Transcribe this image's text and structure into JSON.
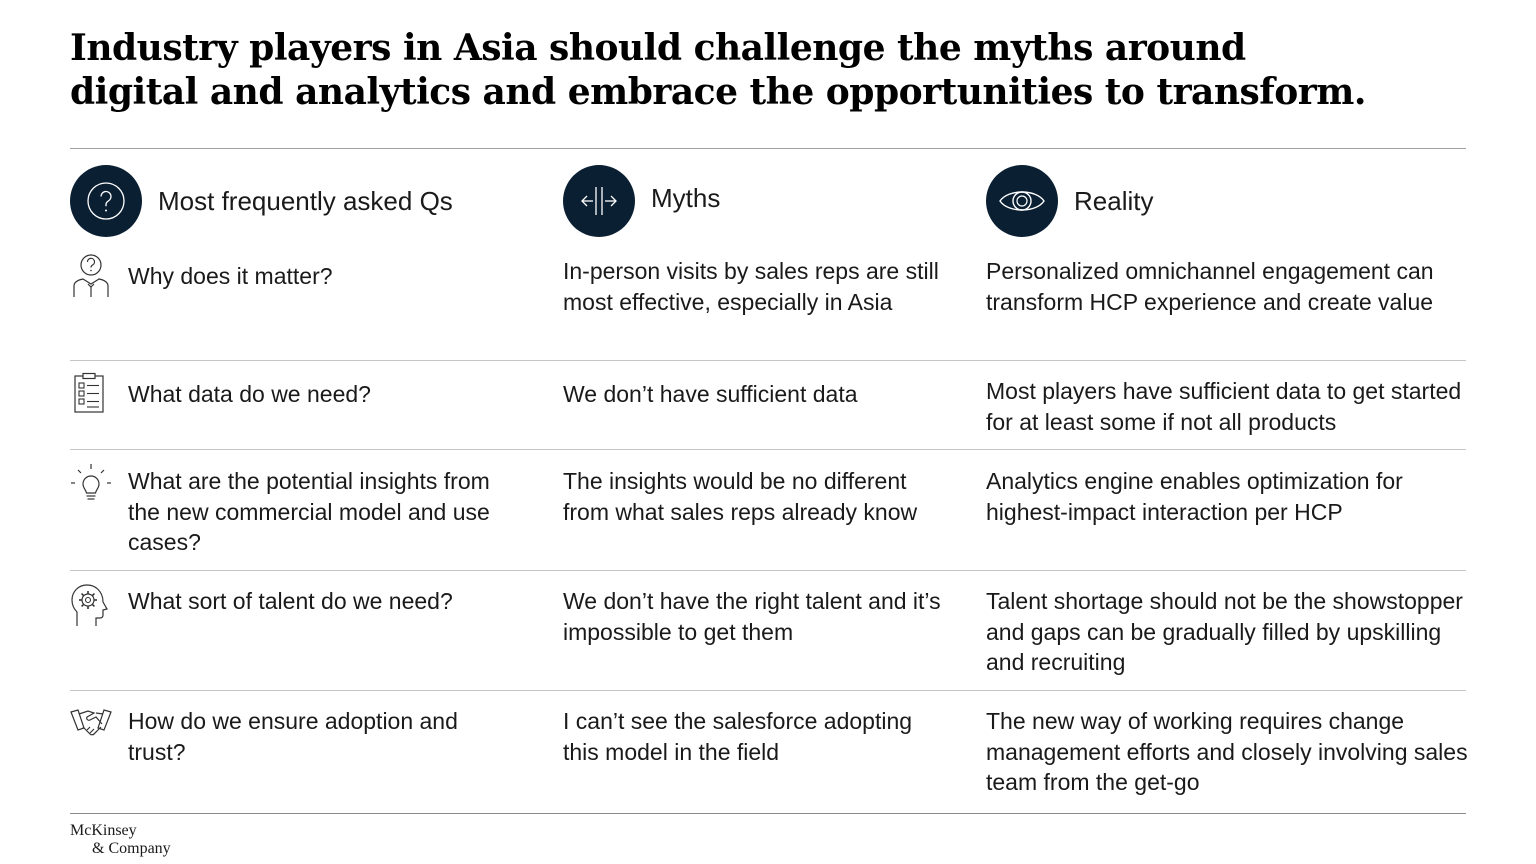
{
  "title": "Industry players in Asia should challenge the myths around digital and analytics and embrace the opportunities to transform.",
  "headers": [
    {
      "label": "Most frequently asked Qs",
      "icon": "question-circle-icon"
    },
    {
      "label": "Myths",
      "icon": "split-arrows-icon"
    },
    {
      "label": "Reality",
      "icon": "eye-icon"
    }
  ],
  "rows": [
    {
      "icon": "person-question-icon",
      "question": "Why does it matter?",
      "myth": "In-person visits by sales reps are still most effective, especially in Asia",
      "reality": "Personalized omnichannel engagement can transform HCP experience and create value"
    },
    {
      "icon": "checklist-icon",
      "question": "What data do we need?",
      "myth": "We don’t have sufficient data",
      "reality": "Most players have sufficient data to get started for at least some if not all products"
    },
    {
      "icon": "lightbulb-icon",
      "question": "What are the potential insights from the new commercial model and use cases?",
      "myth": "The insights would be no different from what sales reps already know",
      "reality": "Analytics engine enables optimization for highest-impact interaction per HCP"
    },
    {
      "icon": "head-gear-icon",
      "question": "What sort of talent do we need?",
      "myth": "We don’t have the right talent and it’s impossible to get them",
      "reality": "Talent shortage should not be the showstopper and gaps can be gradually filled by upskilling and recruiting"
    },
    {
      "icon": "handshake-icon",
      "question": "How do we ensure adoption and trust?",
      "myth": "I can’t see the salesforce adopting this model in the field",
      "reality": "The new way of working requires change management efforts and closely involving sales team from the get-go"
    }
  ],
  "logo": {
    "line1": "McKinsey",
    "line2": "& Company"
  }
}
